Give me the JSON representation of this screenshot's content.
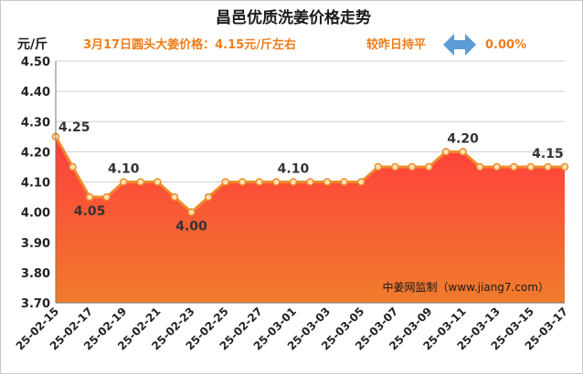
{
  "title": "昌邑优质洗姜价格走势",
  "unit": "元/斤",
  "headline": {
    "price_note": "3月17日圆头大姜价格：4.15元/斤左右",
    "compare_label": "较昨日持平",
    "change": "0.00%"
  },
  "source_note": "中姜网监制（www.jiang7.com）",
  "colors": {
    "line": "#ef8a2c",
    "marker_fill": "#fde3b0",
    "area_top": "#ff3d3d",
    "area_bottom": "#f07c2c",
    "headline": "#ef7d1a",
    "arrow": "#5c9bd5",
    "grid": "#cfcfcf"
  },
  "chart_data": {
    "type": "area",
    "ylabel": "元/斤",
    "ylim": [
      3.7,
      4.5
    ],
    "yticks": [
      "3.70",
      "3.80",
      "3.90",
      "4.00",
      "4.10",
      "4.20",
      "4.30",
      "4.40",
      "4.50"
    ],
    "grid": true,
    "x": [
      "25-02-15",
      "25-02-16",
      "25-02-17",
      "25-02-18",
      "25-02-19",
      "25-02-20",
      "25-02-21",
      "25-02-22",
      "25-02-23",
      "25-02-24",
      "25-02-25",
      "25-02-26",
      "25-02-27",
      "25-02-28",
      "25-03-01",
      "25-03-02",
      "25-03-03",
      "25-03-04",
      "25-03-05",
      "25-03-06",
      "25-03-07",
      "25-03-08",
      "25-03-09",
      "25-03-10",
      "25-03-11",
      "25-03-12",
      "25-03-13",
      "25-03-14",
      "25-03-15",
      "25-03-16",
      "25-03-17"
    ],
    "xtick_labels": [
      "25-02-15",
      "25-02-17",
      "25-02-19",
      "25-02-21",
      "25-02-23",
      "25-02-25",
      "25-02-27",
      "25-03-01",
      "25-03-03",
      "25-03-05",
      "25-03-07",
      "25-03-09",
      "25-03-11",
      "25-03-13",
      "25-03-15",
      "25-03-17"
    ],
    "values": [
      4.25,
      4.15,
      4.05,
      4.05,
      4.1,
      4.1,
      4.1,
      4.05,
      4.0,
      4.05,
      4.1,
      4.1,
      4.1,
      4.1,
      4.1,
      4.1,
      4.1,
      4.1,
      4.1,
      4.15,
      4.15,
      4.15,
      4.15,
      4.2,
      4.2,
      4.15,
      4.15,
      4.15,
      4.15,
      4.15,
      4.15
    ],
    "data_labels": [
      {
        "index": 0,
        "text": "4.25"
      },
      {
        "index": 2,
        "text": "4.05"
      },
      {
        "index": 4,
        "text": "4.10"
      },
      {
        "index": 8,
        "text": "4.00"
      },
      {
        "index": 14,
        "text": "4.10"
      },
      {
        "index": 24,
        "text": "4.20"
      },
      {
        "index": 29,
        "text": "4.15"
      }
    ]
  }
}
